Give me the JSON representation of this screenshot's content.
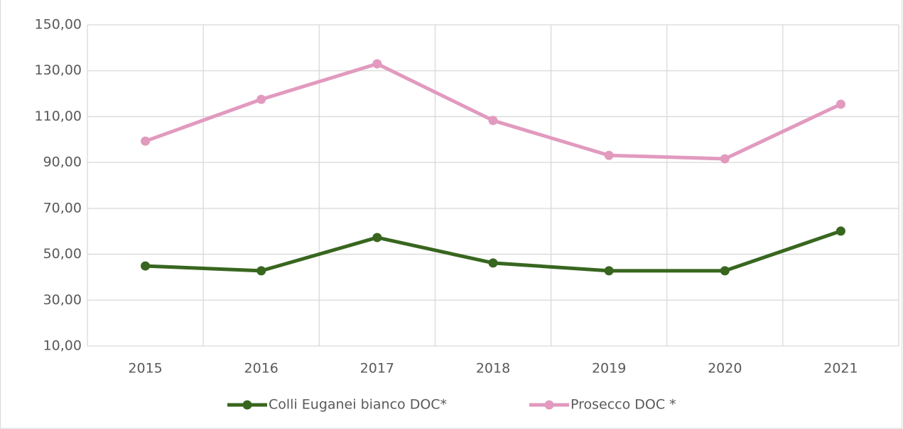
{
  "chart_data": {
    "type": "line",
    "categories": [
      "2015",
      "2016",
      "2017",
      "2018",
      "2019",
      "2020",
      "2021"
    ],
    "series": [
      {
        "name": "Colli Euganei bianco DOC*",
        "color": "#38661f",
        "values": [
          44.9,
          42.8,
          57.3,
          46.2,
          42.8,
          42.8,
          60.1
        ]
      },
      {
        "name": "Prosecco DOC *",
        "color": "#e29abf",
        "values": [
          99.3,
          117.5,
          133,
          108.3,
          93.1,
          91.6,
          115.4
        ]
      }
    ],
    "ylim": [
      10,
      150
    ],
    "yticks": [
      {
        "value": 10,
        "label": "10,00"
      },
      {
        "value": 30,
        "label": "30,00"
      },
      {
        "value": 50,
        "label": "50,00"
      },
      {
        "value": 70,
        "label": "70,00"
      },
      {
        "value": 90,
        "label": "90,00"
      },
      {
        "value": 110,
        "label": "110,00"
      },
      {
        "value": 130,
        "label": "130,00"
      },
      {
        "value": 150,
        "label": "150,00"
      }
    ],
    "grid": true,
    "legend": "bottom"
  }
}
